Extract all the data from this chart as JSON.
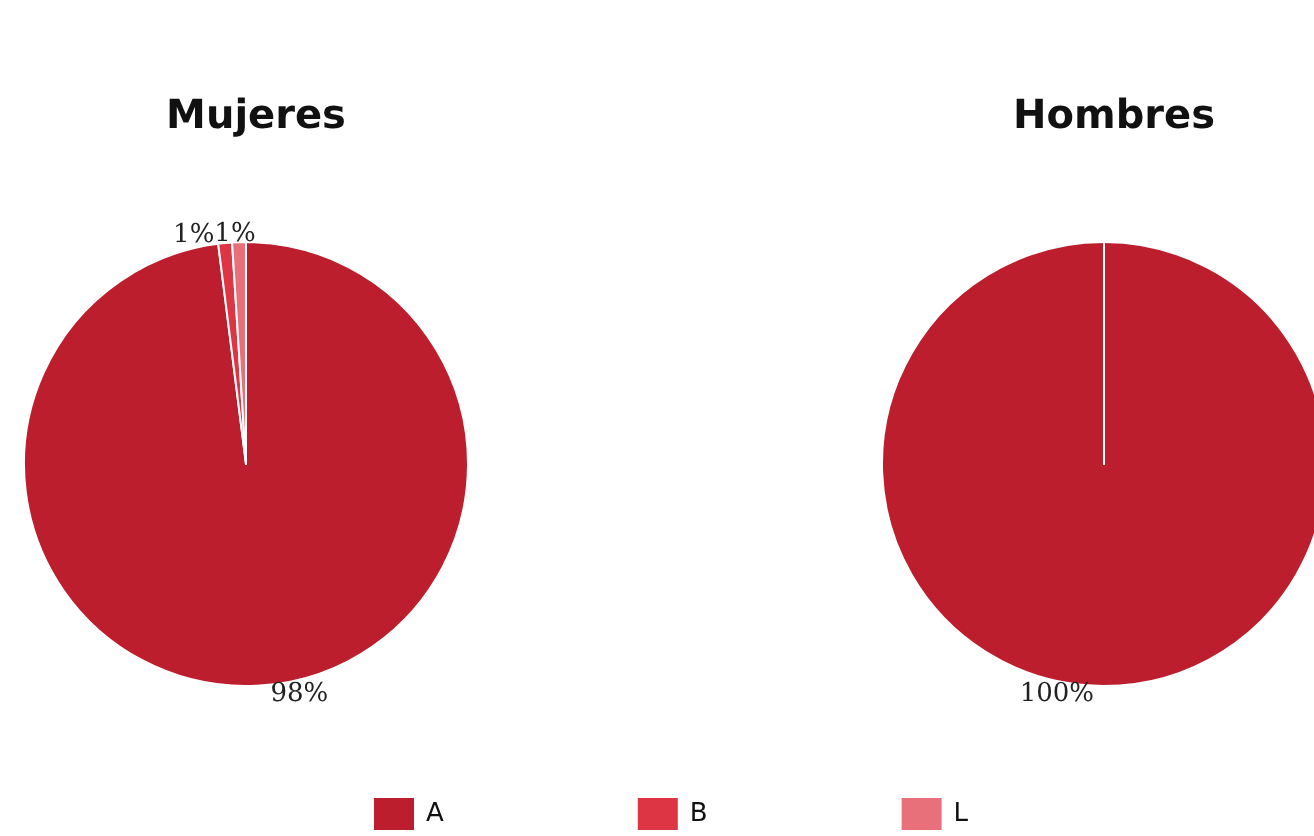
{
  "chart_data": {
    "type": "pie",
    "categories": [
      "A",
      "B",
      "L"
    ],
    "colors": [
      "#bc1e2d",
      "#de3545",
      "#e8707a"
    ],
    "legend": "bottom",
    "series": [
      {
        "name": "Mujeres",
        "values": [
          98,
          1,
          1
        ],
        "value_labels": [
          "98%",
          "1%",
          "1%"
        ]
      },
      {
        "name": "Hombres",
        "values": [
          100,
          0,
          0
        ],
        "value_labels": [
          "100%",
          null,
          null
        ]
      }
    ]
  }
}
